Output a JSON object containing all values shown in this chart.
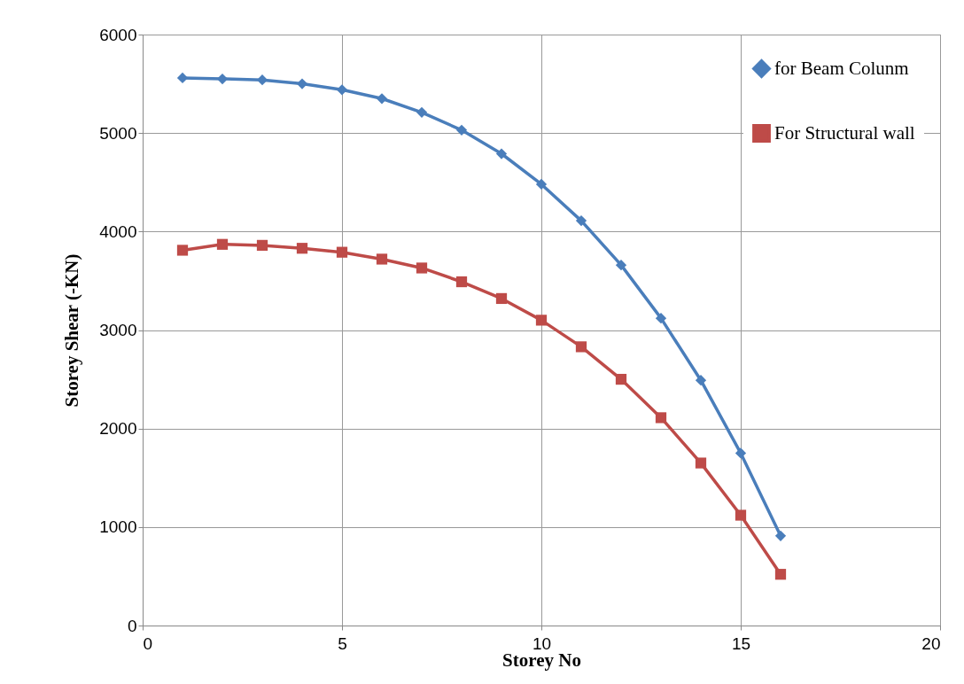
{
  "chart_data": {
    "type": "line",
    "xlabel": "Storey No",
    "ylabel": "Storey Shear (-KN)",
    "x": [
      1,
      2,
      3,
      4,
      5,
      6,
      7,
      8,
      9,
      10,
      11,
      12,
      13,
      14,
      15,
      16
    ],
    "series": [
      {
        "name": "for Beam Colunm",
        "color": "#4a7ebb",
        "marker": "diamond",
        "values": [
          5560,
          5550,
          5540,
          5500,
          5440,
          5350,
          5210,
          5030,
          4790,
          4480,
          4110,
          3660,
          3120,
          2490,
          1750,
          910
        ]
      },
      {
        "name": "For Structural wall",
        "color": "#be4b48",
        "marker": "square",
        "values": [
          3810,
          3870,
          3860,
          3830,
          3790,
          3720,
          3630,
          3490,
          3320,
          3100,
          2830,
          2500,
          2110,
          1650,
          1120,
          520
        ]
      }
    ],
    "xlim": [
      0,
      20
    ],
    "xticks": [
      0,
      5,
      10,
      15,
      20
    ],
    "ylim": [
      0,
      6000
    ],
    "yticks": [
      0,
      1000,
      2000,
      3000,
      4000,
      5000,
      6000
    ],
    "grid": true,
    "legend": "top right",
    "line_style": "solid"
  }
}
